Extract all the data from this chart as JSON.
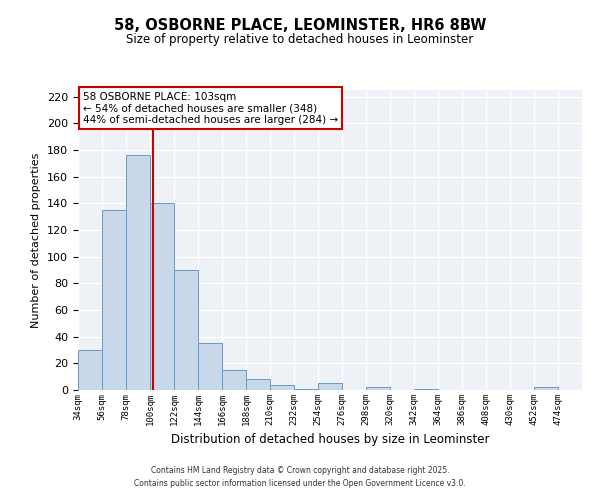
{
  "title": "58, OSBORNE PLACE, LEOMINSTER, HR6 8BW",
  "subtitle": "Size of property relative to detached houses in Leominster",
  "xlabel": "Distribution of detached houses by size in Leominster",
  "ylabel": "Number of detached properties",
  "bar_edges": [
    34,
    56,
    78,
    100,
    122,
    144,
    166,
    188,
    210,
    232,
    254,
    276,
    298,
    320,
    342,
    364,
    386,
    408,
    430,
    452,
    474
  ],
  "bar_heights": [
    30,
    135,
    176,
    140,
    90,
    35,
    15,
    8,
    4,
    1,
    5,
    0,
    2,
    0,
    1,
    0,
    0,
    0,
    0,
    2
  ],
  "bar_color": "#c8d8e8",
  "bar_edge_color": "#6699cc",
  "vline_x": 103,
  "vline_color": "#cc0000",
  "ylim": [
    0,
    225
  ],
  "yticks": [
    0,
    20,
    40,
    60,
    80,
    100,
    120,
    140,
    160,
    180,
    200,
    220
  ],
  "annotation_title": "58 OSBORNE PLACE: 103sqm",
  "annotation_line1": "← 54% of detached houses are smaller (348)",
  "annotation_line2": "44% of semi-detached houses are larger (284) →",
  "annotation_box_color": "#cc0000",
  "bg_color": "#eef2f7",
  "footer_line1": "Contains HM Land Registry data © Crown copyright and database right 2025.",
  "footer_line2": "Contains public sector information licensed under the Open Government Licence v3.0."
}
